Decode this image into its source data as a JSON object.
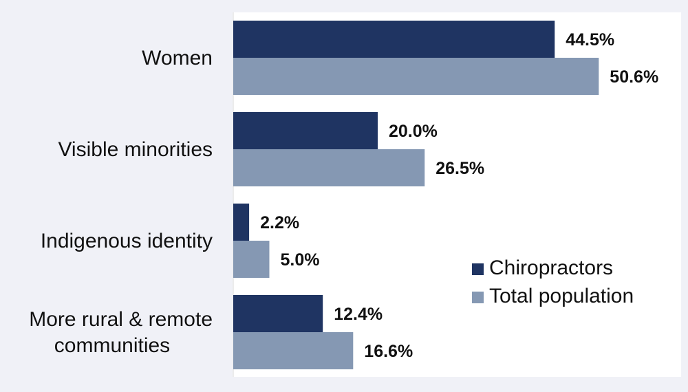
{
  "chart_data": {
    "type": "bar",
    "orientation": "horizontal",
    "categories": [
      "Women",
      "Visible minorities",
      "Indigenous identity",
      "More rural & remote communities"
    ],
    "category_lines": [
      [
        "Women"
      ],
      [
        "Visible minorities"
      ],
      [
        "Indigenous identity"
      ],
      [
        "More rural & remote",
        "communities"
      ]
    ],
    "series": [
      {
        "name": "Chiropractors",
        "values": [
          44.5,
          20.0,
          2.2,
          12.4
        ],
        "labels": [
          "44.5%",
          "20.0%",
          "2.2%",
          "12.4%"
        ],
        "color": "#1f3462"
      },
      {
        "name": "Total population",
        "values": [
          50.6,
          26.5,
          5.0,
          16.6
        ],
        "labels": [
          "50.6%",
          "26.5%",
          "5.0%",
          "16.6%"
        ],
        "color": "#8598b3"
      }
    ],
    "xlim": [
      0,
      60
    ],
    "legend_position": "lower-right",
    "grid": false,
    "plot_background": "#ffffff",
    "page_background": "#f0f1f7"
  }
}
